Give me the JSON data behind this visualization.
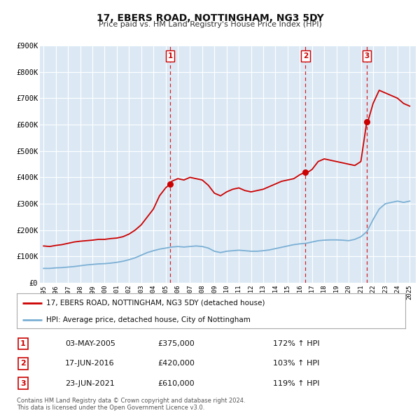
{
  "title": "17, EBERS ROAD, NOTTINGHAM, NG3 5DY",
  "subtitle": "Price paid vs. HM Land Registry's House Price Index (HPI)",
  "plot_bg_color": "#dce9f5",
  "fig_bg_color": "#ffffff",
  "ylim": [
    0,
    900000
  ],
  "yticks": [
    0,
    100000,
    200000,
    300000,
    400000,
    500000,
    600000,
    700000,
    800000,
    900000
  ],
  "ytick_labels": [
    "£0",
    "£100K",
    "£200K",
    "£300K",
    "£400K",
    "£500K",
    "£600K",
    "£700K",
    "£800K",
    "£900K"
  ],
  "xlim_start": 1994.7,
  "xlim_end": 2025.5,
  "xtick_years": [
    1995,
    1996,
    1997,
    1998,
    1999,
    2000,
    2001,
    2002,
    2003,
    2004,
    2005,
    2006,
    2007,
    2008,
    2009,
    2010,
    2011,
    2012,
    2013,
    2014,
    2015,
    2016,
    2017,
    2018,
    2019,
    2020,
    2021,
    2022,
    2023,
    2024,
    2025
  ],
  "red_line_color": "#cc0000",
  "blue_line_color": "#7bafd4",
  "sale_marker_color": "#cc0000",
  "vline_color": "#cc0000",
  "sale_points": [
    {
      "year": 2005.37,
      "value": 375000,
      "label": "1"
    },
    {
      "year": 2016.46,
      "value": 420000,
      "label": "2"
    },
    {
      "year": 2021.48,
      "value": 610000,
      "label": "3"
    }
  ],
  "legend_entries": [
    "17, EBERS ROAD, NOTTINGHAM, NG3 5DY (detached house)",
    "HPI: Average price, detached house, City of Nottingham"
  ],
  "table_rows": [
    {
      "num": "1",
      "date": "03-MAY-2005",
      "price": "£375,000",
      "hpi": "172% ↑ HPI"
    },
    {
      "num": "2",
      "date": "17-JUN-2016",
      "price": "£420,000",
      "hpi": "103% ↑ HPI"
    },
    {
      "num": "3",
      "date": "23-JUN-2021",
      "price": "£610,000",
      "hpi": "119% ↑ HPI"
    }
  ],
  "footnote": "Contains HM Land Registry data © Crown copyright and database right 2024.\nThis data is licensed under the Open Government Licence v3.0.",
  "red_hpi_data": {
    "years": [
      1995.0,
      1995.5,
      1996.0,
      1996.5,
      1997.0,
      1997.5,
      1998.0,
      1998.5,
      1999.0,
      1999.5,
      2000.0,
      2000.5,
      2001.0,
      2001.5,
      2002.0,
      2002.5,
      2003.0,
      2003.5,
      2004.0,
      2004.5,
      2005.0,
      2005.37,
      2005.5,
      2006.0,
      2006.5,
      2007.0,
      2007.5,
      2008.0,
      2008.5,
      2009.0,
      2009.5,
      2010.0,
      2010.5,
      2011.0,
      2011.5,
      2012.0,
      2012.5,
      2013.0,
      2013.5,
      2014.0,
      2014.5,
      2015.0,
      2015.5,
      2016.0,
      2016.46,
      2016.5,
      2017.0,
      2017.5,
      2018.0,
      2018.5,
      2019.0,
      2019.5,
      2020.0,
      2020.5,
      2021.0,
      2021.48,
      2021.5,
      2022.0,
      2022.5,
      2023.0,
      2023.5,
      2024.0,
      2024.5,
      2025.0
    ],
    "values": [
      140000,
      138000,
      142000,
      145000,
      150000,
      155000,
      158000,
      160000,
      162000,
      165000,
      165000,
      168000,
      170000,
      175000,
      185000,
      200000,
      220000,
      250000,
      280000,
      330000,
      360000,
      375000,
      385000,
      395000,
      390000,
      400000,
      395000,
      390000,
      370000,
      340000,
      330000,
      345000,
      355000,
      360000,
      350000,
      345000,
      350000,
      355000,
      365000,
      375000,
      385000,
      390000,
      395000,
      410000,
      420000,
      415000,
      430000,
      460000,
      470000,
      465000,
      460000,
      455000,
      450000,
      445000,
      460000,
      610000,
      600000,
      680000,
      730000,
      720000,
      710000,
      700000,
      680000,
      670000
    ]
  },
  "blue_hpi_data": {
    "years": [
      1995.0,
      1995.5,
      1996.0,
      1996.5,
      1997.0,
      1997.5,
      1998.0,
      1998.5,
      1999.0,
      1999.5,
      2000.0,
      2000.5,
      2001.0,
      2001.5,
      2002.0,
      2002.5,
      2003.0,
      2003.5,
      2004.0,
      2004.5,
      2005.0,
      2005.5,
      2006.0,
      2006.5,
      2007.0,
      2007.5,
      2008.0,
      2008.5,
      2009.0,
      2009.5,
      2010.0,
      2010.5,
      2011.0,
      2011.5,
      2012.0,
      2012.5,
      2013.0,
      2013.5,
      2014.0,
      2014.5,
      2015.0,
      2015.5,
      2016.0,
      2016.5,
      2017.0,
      2017.5,
      2018.0,
      2018.5,
      2019.0,
      2019.5,
      2020.0,
      2020.5,
      2021.0,
      2021.5,
      2022.0,
      2022.5,
      2023.0,
      2023.5,
      2024.0,
      2024.5,
      2025.0
    ],
    "values": [
      55000,
      55000,
      57000,
      58000,
      60000,
      62000,
      65000,
      68000,
      70000,
      72000,
      73000,
      75000,
      78000,
      82000,
      88000,
      95000,
      105000,
      115000,
      122000,
      128000,
      132000,
      136000,
      138000,
      136000,
      138000,
      140000,
      138000,
      132000,
      120000,
      115000,
      120000,
      122000,
      124000,
      122000,
      120000,
      120000,
      122000,
      125000,
      130000,
      135000,
      140000,
      145000,
      148000,
      150000,
      155000,
      160000,
      162000,
      163000,
      163000,
      162000,
      160000,
      165000,
      175000,
      195000,
      240000,
      280000,
      300000,
      305000,
      310000,
      305000,
      310000
    ]
  }
}
